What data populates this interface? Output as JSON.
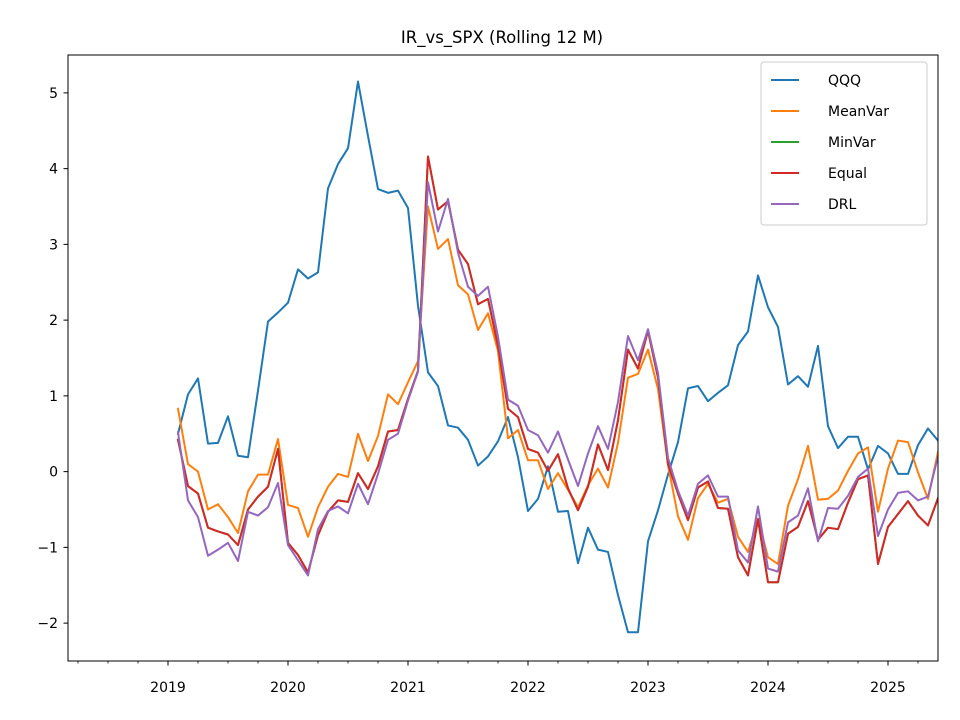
{
  "chart_data": {
    "type": "line",
    "title": "IR_vs_SPX (Rolling 12 M)",
    "xlabel": "",
    "ylabel": "",
    "x_ticks": [
      "2019",
      "2020",
      "2021",
      "2022",
      "2023",
      "2024",
      "2025"
    ],
    "y_ticks": [
      "−2",
      "−1",
      "0",
      "1",
      "2",
      "3",
      "4",
      "5"
    ],
    "x_range": [
      "2018-03",
      "2025-06"
    ],
    "ylim": [
      -2.5,
      5.5
    ],
    "grid": false,
    "legend_placement": "top-right",
    "x": [
      "2019-02",
      "2019-03",
      "2019-04",
      "2019-05",
      "2019-06",
      "2019-07",
      "2019-08",
      "2019-09",
      "2019-10",
      "2019-11",
      "2019-12",
      "2020-01",
      "2020-02",
      "2020-03",
      "2020-04",
      "2020-05",
      "2020-06",
      "2020-07",
      "2020-08",
      "2020-09",
      "2020-10",
      "2020-11",
      "2020-12",
      "2021-01",
      "2021-02",
      "2021-03",
      "2021-04",
      "2021-05",
      "2021-06",
      "2021-07",
      "2021-08",
      "2021-09",
      "2021-10",
      "2021-11",
      "2021-12",
      "2022-01",
      "2022-02",
      "2022-03",
      "2022-04",
      "2022-05",
      "2022-06",
      "2022-07",
      "2022-08",
      "2022-09",
      "2022-10",
      "2022-11",
      "2022-12",
      "2023-01",
      "2023-02",
      "2023-03",
      "2023-04",
      "2023-05",
      "2023-06",
      "2023-07",
      "2023-08",
      "2023-09",
      "2023-10",
      "2023-11",
      "2023-12",
      "2024-01",
      "2024-02",
      "2024-03",
      "2024-04",
      "2024-05",
      "2024-06",
      "2024-07",
      "2024-08",
      "2024-09",
      "2024-10",
      "2024-11",
      "2024-12",
      "2025-01",
      "2025-02",
      "2025-03",
      "2025-04",
      "2025-05",
      "2025-06"
    ],
    "series": [
      {
        "name": "QQQ",
        "color": "#1f77b4",
        "values": [
          0.5,
          1.02,
          1.23,
          0.37,
          0.38,
          0.73,
          0.21,
          0.19,
          1.07,
          1.98,
          2.1,
          2.23,
          2.67,
          2.55,
          2.63,
          3.74,
          4.06,
          4.27,
          5.15,
          4.43,
          3.73,
          3.68,
          3.71,
          3.48,
          2.19,
          1.31,
          1.13,
          0.61,
          0.58,
          0.42,
          0.08,
          0.2,
          0.4,
          0.72,
          0.19,
          -0.52,
          -0.36,
          0.07,
          -0.53,
          -0.52,
          -1.21,
          -0.74,
          -1.03,
          -1.06,
          -1.63,
          -2.12,
          -2.12,
          -0.92,
          -0.51,
          -0.04,
          0.39,
          1.1,
          1.13,
          0.93,
          1.04,
          1.14,
          1.67,
          1.85,
          2.59,
          2.17,
          1.91,
          1.15,
          1.26,
          1.12,
          1.66,
          0.6,
          0.31,
          0.46,
          0.46,
          0.03,
          0.34,
          0.24,
          -0.03,
          -0.03,
          0.35,
          0.57,
          0.41
        ]
      },
      {
        "name": "MeanVar",
        "color": "#ff7f0e",
        "values": [
          0.83,
          0.1,
          0.0,
          -0.5,
          -0.43,
          -0.6,
          -0.81,
          -0.26,
          -0.04,
          -0.04,
          0.43,
          -0.44,
          -0.48,
          -0.86,
          -0.47,
          -0.2,
          -0.03,
          -0.07,
          0.5,
          0.14,
          0.47,
          1.02,
          0.89,
          1.18,
          1.46,
          3.5,
          2.94,
          3.07,
          2.46,
          2.34,
          1.87,
          2.09,
          1.59,
          0.44,
          0.55,
          0.15,
          0.15,
          -0.23,
          -0.02,
          -0.24,
          -0.47,
          -0.18,
          0.04,
          -0.21,
          0.38,
          1.24,
          1.29,
          1.61,
          1.09,
          0.09,
          -0.59,
          -0.9,
          -0.35,
          -0.16,
          -0.41,
          -0.36,
          -0.86,
          -1.06,
          -0.62,
          -1.13,
          -1.22,
          -0.45,
          -0.1,
          0.34,
          -0.37,
          -0.36,
          -0.25,
          0.01,
          0.24,
          0.32,
          -0.53,
          0.04,
          0.41,
          0.39,
          -0.01,
          -0.36,
          0.26
        ]
      },
      {
        "name": "MinVar",
        "color": "#2ca02c",
        "values": [
          0.42,
          -0.19,
          -0.29,
          -0.74,
          -0.79,
          -0.83,
          -0.97,
          -0.5,
          -0.33,
          -0.2,
          0.3,
          -0.94,
          -1.1,
          -1.33,
          -0.84,
          -0.53,
          -0.38,
          -0.4,
          -0.02,
          -0.23,
          0.07,
          0.53,
          0.55,
          0.96,
          1.33,
          4.16,
          3.46,
          3.57,
          2.93,
          2.74,
          2.21,
          2.28,
          1.66,
          0.83,
          0.72,
          0.3,
          0.25,
          0.01,
          0.23,
          -0.22,
          -0.51,
          -0.2,
          0.36,
          0.02,
          0.68,
          1.61,
          1.36,
          1.86,
          1.24,
          0.1,
          -0.29,
          -0.64,
          -0.21,
          -0.13,
          -0.48,
          -0.49,
          -1.13,
          -1.37,
          -0.63,
          -1.46,
          -1.46,
          -0.82,
          -0.73,
          -0.39,
          -0.9,
          -0.74,
          -0.76,
          -0.41,
          -0.1,
          -0.05,
          -1.22,
          -0.73,
          -0.56,
          -0.39,
          -0.58,
          -0.71,
          -0.35
        ]
      },
      {
        "name": "Equal",
        "color": "#d62728",
        "values": [
          0.42,
          -0.19,
          -0.29,
          -0.74,
          -0.79,
          -0.83,
          -0.97,
          -0.5,
          -0.33,
          -0.2,
          0.3,
          -0.94,
          -1.1,
          -1.33,
          -0.84,
          -0.53,
          -0.38,
          -0.4,
          -0.02,
          -0.23,
          0.07,
          0.53,
          0.55,
          0.96,
          1.33,
          4.16,
          3.46,
          3.57,
          2.93,
          2.74,
          2.21,
          2.28,
          1.66,
          0.83,
          0.72,
          0.3,
          0.25,
          0.01,
          0.23,
          -0.22,
          -0.51,
          -0.2,
          0.36,
          0.02,
          0.68,
          1.61,
          1.36,
          1.86,
          1.24,
          0.1,
          -0.29,
          -0.64,
          -0.21,
          -0.13,
          -0.48,
          -0.49,
          -1.13,
          -1.37,
          -0.63,
          -1.46,
          -1.46,
          -0.82,
          -0.73,
          -0.39,
          -0.9,
          -0.74,
          -0.76,
          -0.41,
          -0.1,
          -0.05,
          -1.22,
          -0.73,
          -0.56,
          -0.39,
          -0.58,
          -0.71,
          -0.35
        ]
      },
      {
        "name": "DRL",
        "color": "#9467bd",
        "values": [
          0.52,
          -0.38,
          -0.6,
          -1.11,
          -1.03,
          -0.94,
          -1.18,
          -0.53,
          -0.58,
          -0.47,
          -0.15,
          -0.97,
          -1.17,
          -1.37,
          -0.76,
          -0.52,
          -0.46,
          -0.55,
          -0.16,
          -0.43,
          -0.03,
          0.42,
          0.5,
          0.94,
          1.32,
          3.82,
          3.17,
          3.6,
          2.89,
          2.44,
          2.32,
          2.44,
          1.78,
          0.95,
          0.87,
          0.55,
          0.48,
          0.25,
          0.53,
          0.16,
          -0.19,
          0.24,
          0.6,
          0.3,
          0.92,
          1.79,
          1.47,
          1.88,
          1.3,
          0.18,
          -0.25,
          -0.58,
          -0.16,
          -0.05,
          -0.33,
          -0.33,
          -1.04,
          -1.2,
          -0.46,
          -1.28,
          -1.32,
          -0.67,
          -0.58,
          -0.22,
          -0.92,
          -0.48,
          -0.49,
          -0.32,
          -0.07,
          0.04,
          -0.85,
          -0.5,
          -0.28,
          -0.26,
          -0.38,
          -0.33,
          0.2
        ]
      }
    ]
  }
}
